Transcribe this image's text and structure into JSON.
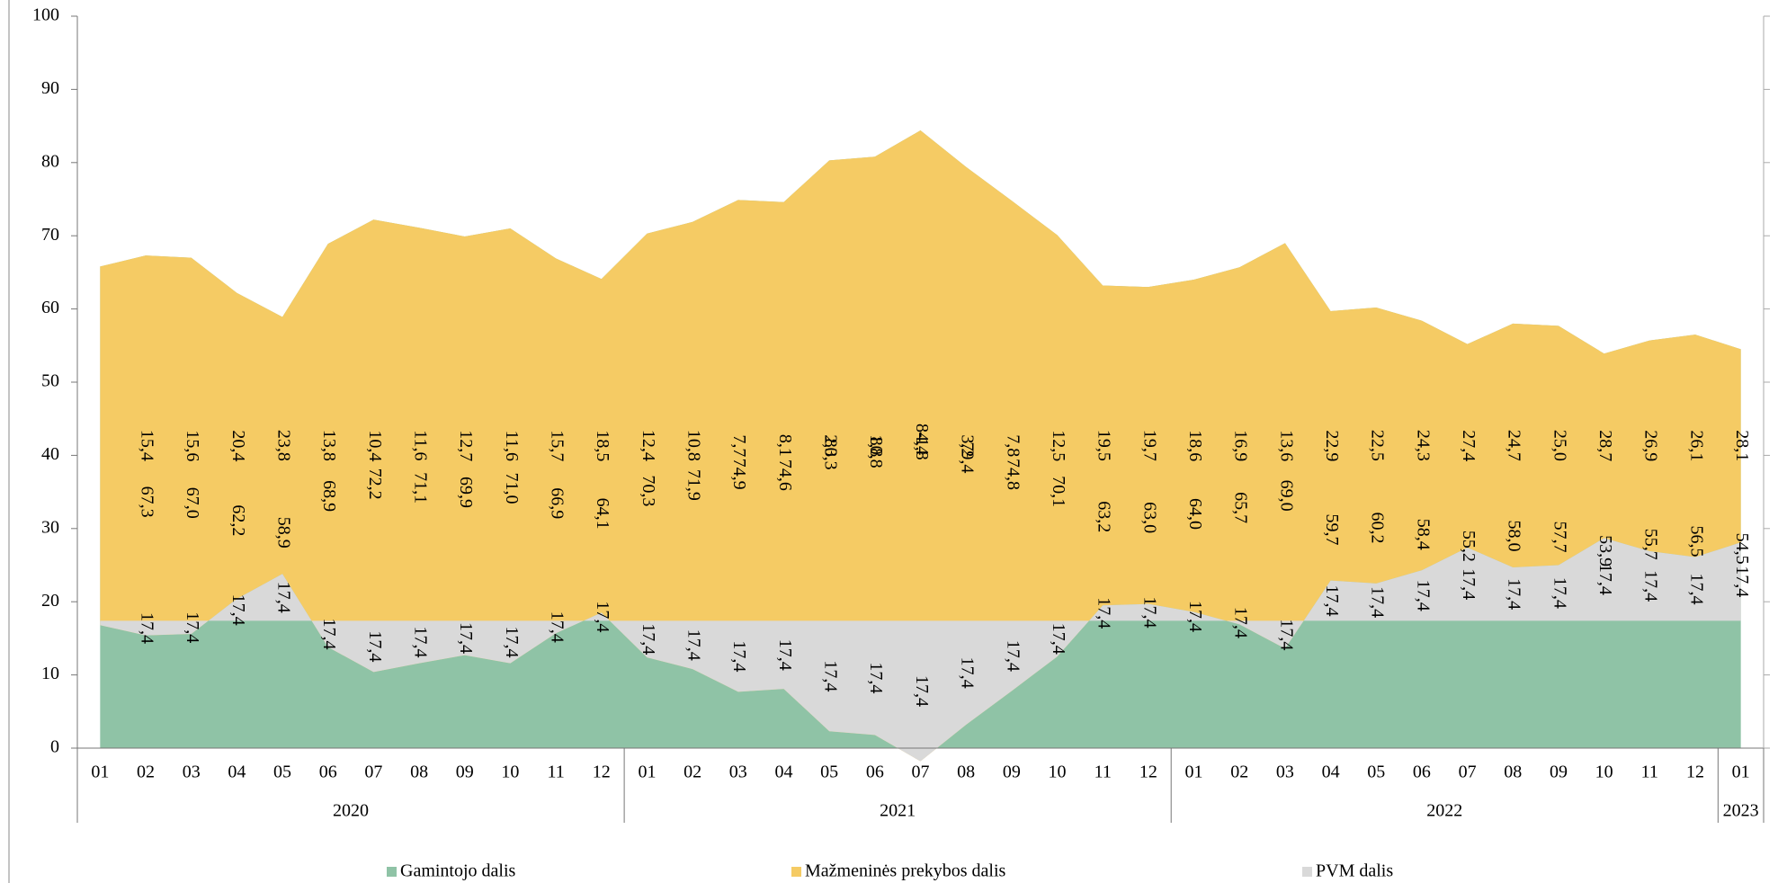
{
  "chart_data": {
    "type": "stacked_area",
    "category_groups": [
      {
        "name": "2020",
        "categories": [
          "01",
          "02",
          "03",
          "04",
          "05",
          "06",
          "07",
          "08",
          "09",
          "10",
          "11",
          "12"
        ]
      },
      {
        "name": "2021",
        "categories": [
          "01",
          "02",
          "03",
          "04",
          "05",
          "06",
          "07",
          "08",
          "09",
          "10",
          "11",
          "12"
        ]
      },
      {
        "name": "2022",
        "categories": [
          "01",
          "02",
          "03",
          "04",
          "05",
          "06",
          "07",
          "08",
          "09",
          "10",
          "11",
          "12"
        ]
      },
      {
        "name": "2023",
        "categories": [
          "01"
        ]
      }
    ],
    "ylim": [
      0,
      100
    ],
    "yticks": [
      0,
      10,
      20,
      30,
      40,
      50,
      60,
      70,
      80,
      90,
      100
    ],
    "legend": "bottom",
    "series": [
      {
        "name": "Gamintojo dalis",
        "color": "#8fc3a6",
        "values": [
          65.8,
          67.3,
          67.0,
          62.2,
          58.9,
          68.9,
          72.2,
          71.1,
          69.9,
          71.0,
          66.9,
          64.1,
          70.3,
          71.9,
          74.9,
          74.6,
          80.3,
          80.8,
          84.4,
          79.4,
          74.8,
          70.1,
          63.2,
          63.0,
          64.0,
          65.7,
          69.0,
          59.7,
          60.2,
          58.4,
          55.2,
          58.0,
          57.7,
          53.9,
          55.7,
          56.5,
          54.5
        ],
        "value_labels": [
          null,
          "67,3",
          "67,0",
          "62,2",
          "58,9",
          "68,9",
          "72,2",
          "71,1",
          "69,9",
          "71,0",
          "66,9",
          "64,1",
          "70,3",
          "71,9",
          "74,9",
          "74,6",
          "80,3",
          "80,8",
          "84,4",
          "79,4",
          "74,8",
          "70,1",
          "63,2",
          "63,0",
          "64,0",
          "65,7",
          "69,0",
          "59,7",
          "60,2",
          "58,4",
          "55,2",
          "58,0",
          "57,7",
          "53,9",
          "55,7",
          "56,5",
          "54,5"
        ]
      },
      {
        "name": "Mažmeninės prekybos dalis",
        "color": "#f5cb64",
        "values": [
          16.8,
          15.4,
          15.6,
          20.4,
          23.8,
          13.8,
          10.4,
          11.6,
          12.7,
          11.6,
          15.7,
          18.5,
          12.4,
          10.8,
          7.7,
          8.1,
          2.3,
          1.8,
          -1.8,
          3.2,
          7.8,
          12.5,
          19.5,
          19.7,
          18.6,
          16.9,
          13.6,
          22.9,
          22.5,
          24.3,
          27.4,
          24.7,
          25.0,
          28.7,
          26.9,
          26.1,
          28.1
        ],
        "value_labels": [
          null,
          "15,4",
          "15,6",
          "20,4",
          "23,8",
          "13,8",
          "10,4",
          "11,6",
          "12,7",
          "11,6",
          "15,7",
          "18,5",
          "12,4",
          "10,8",
          "7,7",
          "8,1",
          "2,3",
          "1,8",
          "-1,8",
          "3,2",
          "7,8",
          "12,5",
          "19,5",
          "19,7",
          "18,6",
          "16,9",
          "13,6",
          "22,9",
          "22,5",
          "24,3",
          "27,4",
          "24,7",
          "25,0",
          "28,7",
          "26,9",
          "26,1",
          "28,1"
        ]
      },
      {
        "name": "PVM dalis",
        "color": "#d9d9d9",
        "values": [
          17.4,
          17.4,
          17.4,
          17.4,
          17.4,
          17.4,
          17.4,
          17.4,
          17.4,
          17.4,
          17.4,
          17.4,
          17.4,
          17.4,
          17.4,
          17.4,
          17.4,
          17.4,
          17.4,
          17.4,
          17.4,
          17.4,
          17.4,
          17.4,
          17.4,
          17.4,
          17.4,
          17.4,
          17.4,
          17.4,
          17.4,
          17.4,
          17.4,
          17.4,
          17.4,
          17.4,
          17.4
        ],
        "value_labels": [
          null,
          "17,4",
          "17,4",
          "17,4",
          "17,4",
          "17,4",
          "17,4",
          "17,4",
          "17,4",
          "17,4",
          "17,4",
          "17,4",
          "17,4",
          "17,4",
          "17,4",
          "17,4",
          "17,4",
          "17,4",
          "17,4",
          "17,4",
          "17,4",
          "17,4",
          "17,4",
          "17,4",
          "17,4",
          "17,4",
          "17,4",
          "17,4",
          "17,4",
          "17,4",
          "17,4",
          "17,4",
          "17,4",
          "17,4",
          "17,4",
          "17,4",
          "17,4"
        ]
      }
    ]
  }
}
